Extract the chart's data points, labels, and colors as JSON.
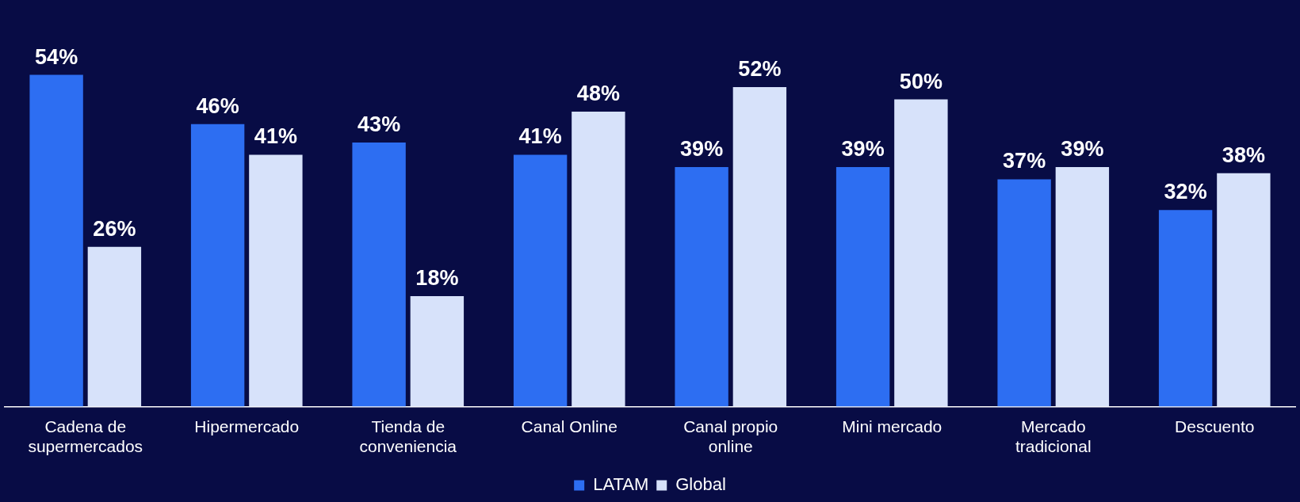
{
  "chart_data": {
    "type": "bar",
    "categories": [
      "Cadena de supermercados",
      "Hipermercado",
      "Tienda de conveniencia",
      "Canal Online",
      "Canal propio online",
      "Mini mercado",
      "Mercado tradicional",
      "Descuento"
    ],
    "series": [
      {
        "name": "LATAM",
        "color": "#2d6ef2",
        "values": [
          54,
          46,
          43,
          41,
          39,
          39,
          37,
          32
        ],
        "value_labels": [
          "54%",
          "46%",
          "43%",
          "41%",
          "39%",
          "39%",
          "37%",
          "32%"
        ]
      },
      {
        "name": "Global",
        "color": "#d7e2fa",
        "values": [
          26,
          41,
          18,
          48,
          52,
          50,
          39,
          38
        ],
        "value_labels": [
          "26%",
          "41%",
          "18%",
          "48%",
          "52%",
          "50%",
          "39%",
          "38%"
        ]
      }
    ],
    "legend": "bottom",
    "grid": false,
    "tick_labels": "x"
  }
}
